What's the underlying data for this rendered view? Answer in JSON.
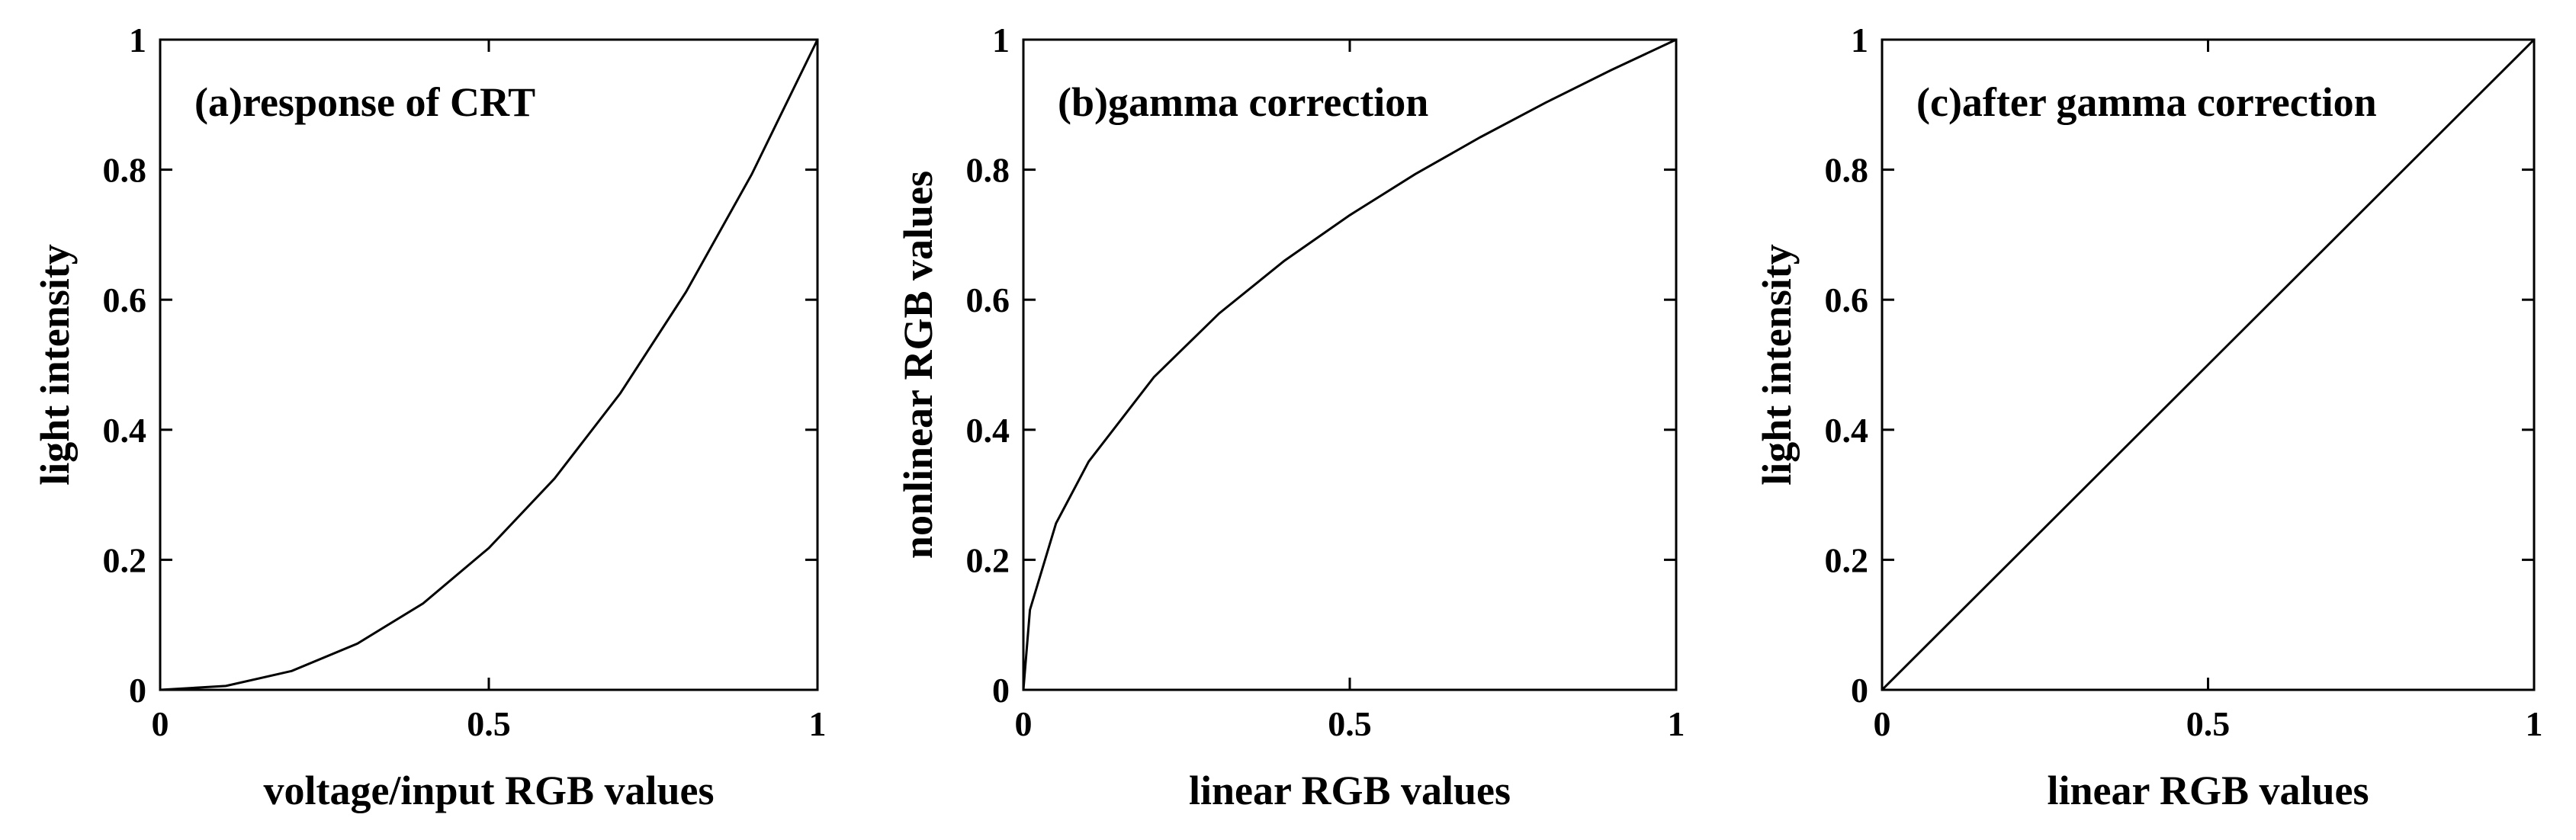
{
  "chart_data": [
    {
      "type": "line",
      "title": "(a)response of CRT",
      "xlabel": "voltage/input RGB values",
      "ylabel": "light intensity",
      "xlim": [
        0,
        1
      ],
      "ylim": [
        0,
        1
      ],
      "xticks": [
        "0",
        "0.5",
        "1"
      ],
      "yticks": [
        "0",
        "0.2",
        "0.4",
        "0.6",
        "0.8",
        "1"
      ],
      "grid": false,
      "x": [
        0,
        0.1,
        0.2,
        0.3,
        0.4,
        0.5,
        0.6,
        0.7,
        0.8,
        0.9,
        1.0
      ],
      "y": [
        0,
        0.006,
        0.029,
        0.071,
        0.133,
        0.218,
        0.325,
        0.456,
        0.612,
        0.793,
        1.0
      ]
    },
    {
      "type": "line",
      "title": "(b)gamma correction",
      "xlabel": "linear RGB values",
      "ylabel": "nonlinear RGB values",
      "xlim": [
        0,
        1
      ],
      "ylim": [
        0,
        1
      ],
      "xticks": [
        "0",
        "0.5",
        "1"
      ],
      "yticks": [
        "0",
        "0.2",
        "0.4",
        "0.6",
        "0.8",
        "1"
      ],
      "grid": false,
      "x": [
        0,
        0.01,
        0.05,
        0.1,
        0.2,
        0.3,
        0.4,
        0.5,
        0.6,
        0.7,
        0.8,
        0.9,
        1.0
      ],
      "y": [
        0,
        0.123,
        0.256,
        0.351,
        0.481,
        0.579,
        0.66,
        0.73,
        0.793,
        0.85,
        0.903,
        0.953,
        1.0
      ]
    },
    {
      "type": "line",
      "title": "(c)after gamma correction",
      "xlabel": "linear RGB values",
      "ylabel": "light intensity",
      "xlim": [
        0,
        1
      ],
      "ylim": [
        0,
        1
      ],
      "xticks": [
        "0",
        "0.5",
        "1"
      ],
      "yticks": [
        "0",
        "0.2",
        "0.4",
        "0.6",
        "0.8",
        "1"
      ],
      "grid": false,
      "x": [
        0,
        0.5,
        1.0
      ],
      "y": [
        0,
        0.5,
        1.0
      ]
    }
  ]
}
